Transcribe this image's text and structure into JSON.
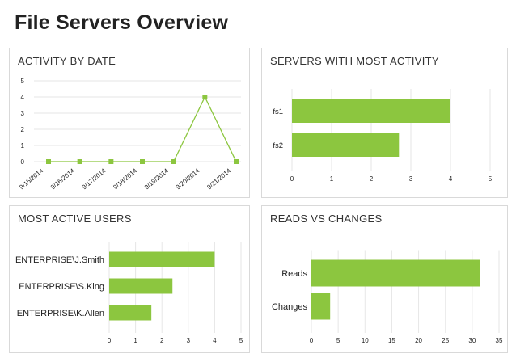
{
  "page": {
    "title": "File Servers Overview"
  },
  "colors": {
    "accent": "#8cc63f",
    "grid": "#e6e6e6",
    "border": "#d9d9d9"
  },
  "panels": {
    "activity": {
      "title": "ACTIVITY BY DATE"
    },
    "servers": {
      "title": "SERVERS WITH MOST ACTIVITY"
    },
    "users": {
      "title": "MOST ACTIVE USERS"
    },
    "reads": {
      "title": "READS VS CHANGES"
    }
  },
  "chart_data": [
    {
      "type": "line",
      "x": [
        "9/15/2014",
        "9/16/2014",
        "9/17/2014",
        "9/18/2014",
        "9/19/2014",
        "9/20/2014",
        "9/21/2014"
      ],
      "values": [
        0,
        0,
        0,
        0,
        0,
        4,
        0
      ],
      "ylim": [
        0,
        5
      ],
      "yticks": [
        "0",
        "1",
        "2",
        "3",
        "4",
        "5"
      ],
      "grid": true
    },
    {
      "type": "bar",
      "orientation": "horizontal",
      "categories": [
        "fs1",
        "fs2"
      ],
      "values": [
        4,
        2.7
      ],
      "xlim": [
        0,
        5
      ],
      "xticks": [
        "0",
        "1",
        "2",
        "3",
        "4",
        "5"
      ],
      "grid": true
    },
    {
      "type": "bar",
      "orientation": "horizontal",
      "categories": [
        "ENTERPRISE\\J.Smith",
        "ENTERPRISE\\S.King",
        "ENTERPRISE\\K.Allen"
      ],
      "values": [
        4,
        2.4,
        1.6
      ],
      "xlim": [
        0,
        5
      ],
      "xticks": [
        "0",
        "1",
        "2",
        "3",
        "4",
        "5"
      ],
      "grid": true
    },
    {
      "type": "bar",
      "orientation": "horizontal",
      "categories": [
        "Reads",
        "Changes"
      ],
      "values": [
        31.5,
        3.5
      ],
      "xlim": [
        0,
        35
      ],
      "xticks": [
        "0",
        "5",
        "10",
        "15",
        "20",
        "25",
        "30",
        "35"
      ],
      "grid": true
    }
  ]
}
